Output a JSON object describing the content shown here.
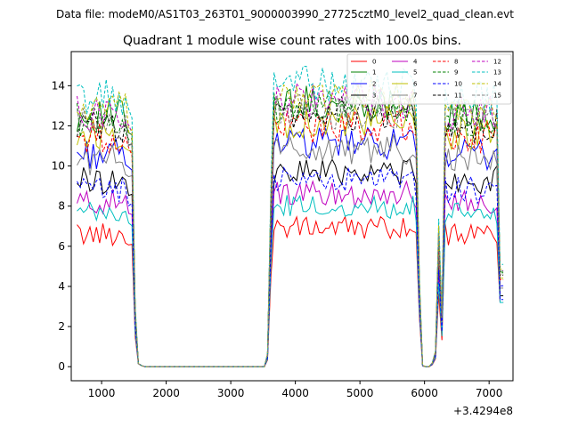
{
  "figure": {
    "suptitle": "Data file: modeM0/AS1T03_263T01_9000003990_27725cztM0_level2_quad_clean.evt",
    "offset_text": "+3.4294e8"
  },
  "chart_data": {
    "type": "line",
    "title": "Quadrant 1 module wise count rates with 100.0s bins.",
    "xlabel": "",
    "ylabel": "",
    "xlim": [
      530,
      7370
    ],
    "ylim": [
      -0.7,
      15.7
    ],
    "x_offset": 342940000,
    "xticks": [
      1000,
      2000,
      3000,
      4000,
      5000,
      6000,
      7000
    ],
    "xtick_labels": [
      "1000",
      "2000",
      "3000",
      "4000",
      "5000",
      "6000",
      "7000"
    ],
    "yticks": [
      0,
      2,
      4,
      6,
      8,
      10,
      12,
      14
    ],
    "ytick_labels": [
      "0",
      "2",
      "4",
      "6",
      "8",
      "10",
      "12",
      "14"
    ],
    "grid": false,
    "legend_placement": "top-right",
    "legend_columns": 4,
    "x_segments": [
      {
        "start": 620,
        "end": 1420
      },
      {
        "start": 1420,
        "end": 3520
      },
      {
        "start": 3520,
        "end": 5920
      },
      {
        "start": 5920,
        "end": 6220
      },
      {
        "start": 6220,
        "end": 7220
      }
    ],
    "x_step": 50,
    "segment_values": [
      {
        "type": "active"
      },
      {
        "type": "gap",
        "values": [
          6.1,
          2.5,
          0.15,
          0.05,
          0,
          0,
          0,
          0,
          0,
          0,
          0,
          0,
          0,
          0,
          0,
          0,
          0,
          0,
          0,
          0,
          0,
          0,
          0,
          0,
          0,
          0,
          0,
          0,
          0,
          0,
          0,
          0,
          0,
          0,
          0,
          0,
          0,
          0,
          0,
          0,
          0,
          0,
          0
        ]
      },
      {
        "type": "active"
      },
      {
        "type": "dip",
        "values": [
          1.0,
          0.1,
          0.0,
          0.0,
          0.3,
          1.2,
          4.0
        ]
      },
      {
        "type": "active"
      }
    ],
    "series": [
      {
        "name": "0",
        "color": "#ff0000",
        "dash": "solid",
        "level": 6.6
      },
      {
        "name": "1",
        "color": "#008000",
        "dash": "solid",
        "level": 12.5
      },
      {
        "name": "2",
        "color": "#0000ff",
        "dash": "solid",
        "level": 10.6
      },
      {
        "name": "3",
        "color": "#000000",
        "dash": "solid",
        "level": 9.3
      },
      {
        "name": "4",
        "color": "#bf00bf",
        "dash": "solid",
        "level": 8.2
      },
      {
        "name": "5",
        "color": "#00bfbf",
        "dash": "solid",
        "level": 7.6
      },
      {
        "name": "6",
        "color": "#bfbf00",
        "dash": "solid",
        "level": 11.6
      },
      {
        "name": "7",
        "color": "#808080",
        "dash": "solid",
        "level": 10.3
      },
      {
        "name": "8",
        "color": "#ff0000",
        "dash": "dashed",
        "level": 11.4
      },
      {
        "name": "9",
        "color": "#008000",
        "dash": "dashed",
        "level": 12.3
      },
      {
        "name": "10",
        "color": "#0000ff",
        "dash": "dashed",
        "level": 8.8
      },
      {
        "name": "11",
        "color": "#000000",
        "dash": "dashed",
        "level": 12.0
      },
      {
        "name": "12",
        "color": "#bf00bf",
        "dash": "dashed",
        "level": 12.6
      },
      {
        "name": "13",
        "color": "#00bfbf",
        "dash": "dashed",
        "level": 13.4
      },
      {
        "name": "14",
        "color": "#bfbf00",
        "dash": "dashed",
        "level": 12.8
      },
      {
        "name": "15",
        "color": "#808080",
        "dash": "dashed",
        "level": 12.1
      }
    ]
  }
}
